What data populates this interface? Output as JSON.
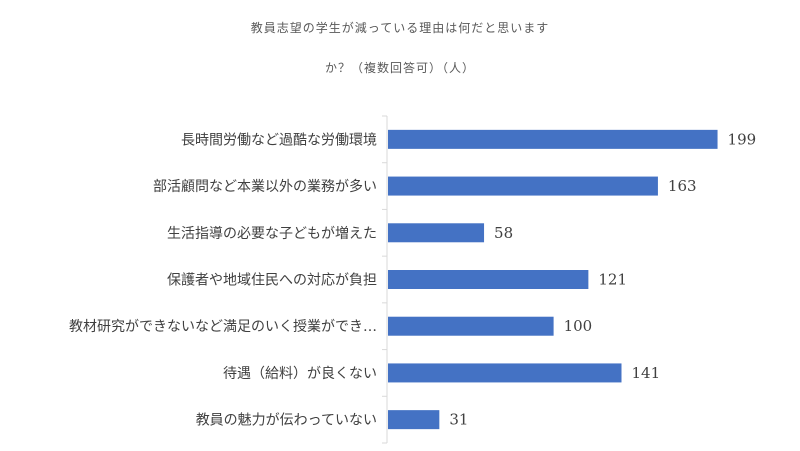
{
  "chart_data": {
    "type": "bar",
    "orientation": "horizontal",
    "title_line1": "教員志望の学生が減っている理由は何だと思います",
    "title_line2": "か？（複数回答可）（人）",
    "categories": [
      "長時間労働など過酷な労働環境",
      "部活顧問など本業以外の業務が多い",
      "生活指導の必要な子どもが増えた",
      "保護者や地域住民への対応が負担",
      "教材研究ができないなど満足のいく授業ができ…",
      "待遇（給料）が良くない",
      "教員の魅力が伝わっていない"
    ],
    "values": [
      199,
      163,
      58,
      121,
      100,
      141,
      31
    ],
    "xlim": [
      0,
      250
    ],
    "bar_color": "#4472C4",
    "axis_color": "#D9D9D9",
    "grid": false,
    "legend": "none"
  }
}
